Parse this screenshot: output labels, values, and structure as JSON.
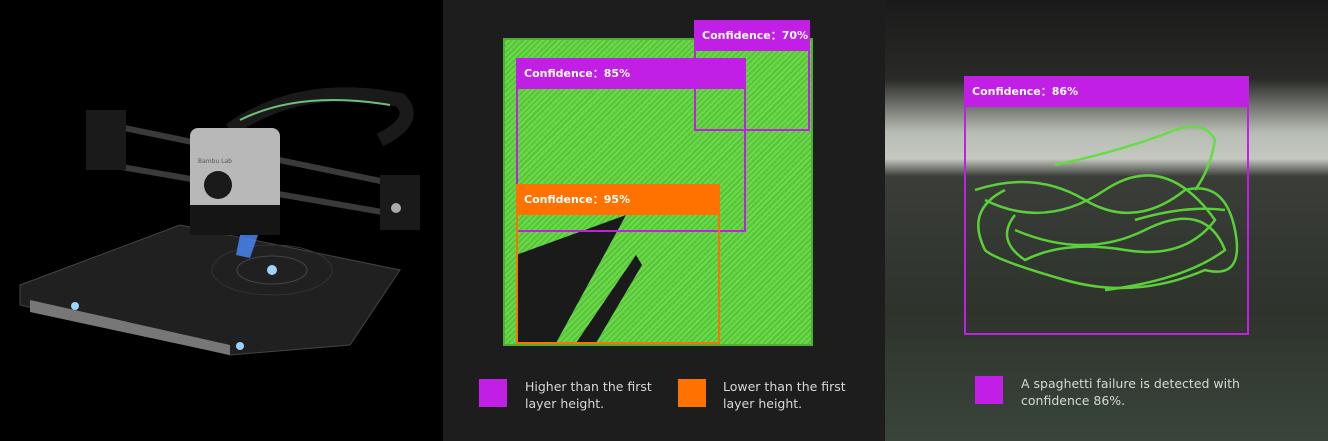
{
  "colors": {
    "higher": "#c21fe6",
    "lower": "#ff7200",
    "print_green": "#5fcf3a"
  },
  "printer": {
    "logo_text": "Bambu Lab"
  },
  "first_layer": {
    "detections": [
      {
        "label": "Confidence：70%",
        "confidence": 70,
        "class": "higher"
      },
      {
        "label": "Confidence：85%",
        "confidence": 85,
        "class": "higher"
      },
      {
        "label": "Confidence：95%",
        "confidence": 95,
        "class": "lower"
      }
    ],
    "legend": [
      {
        "text": "Higher than the first layer height.",
        "color": "#c21fe6"
      },
      {
        "text": "Lower than the first layer height.",
        "color": "#ff7200"
      }
    ]
  },
  "spaghetti": {
    "detection": {
      "label": "Confidence：86%",
      "confidence": 86
    },
    "legend": {
      "text": "A spaghetti failure is detected with confidence 86%.",
      "color": "#c21fe6"
    }
  }
}
